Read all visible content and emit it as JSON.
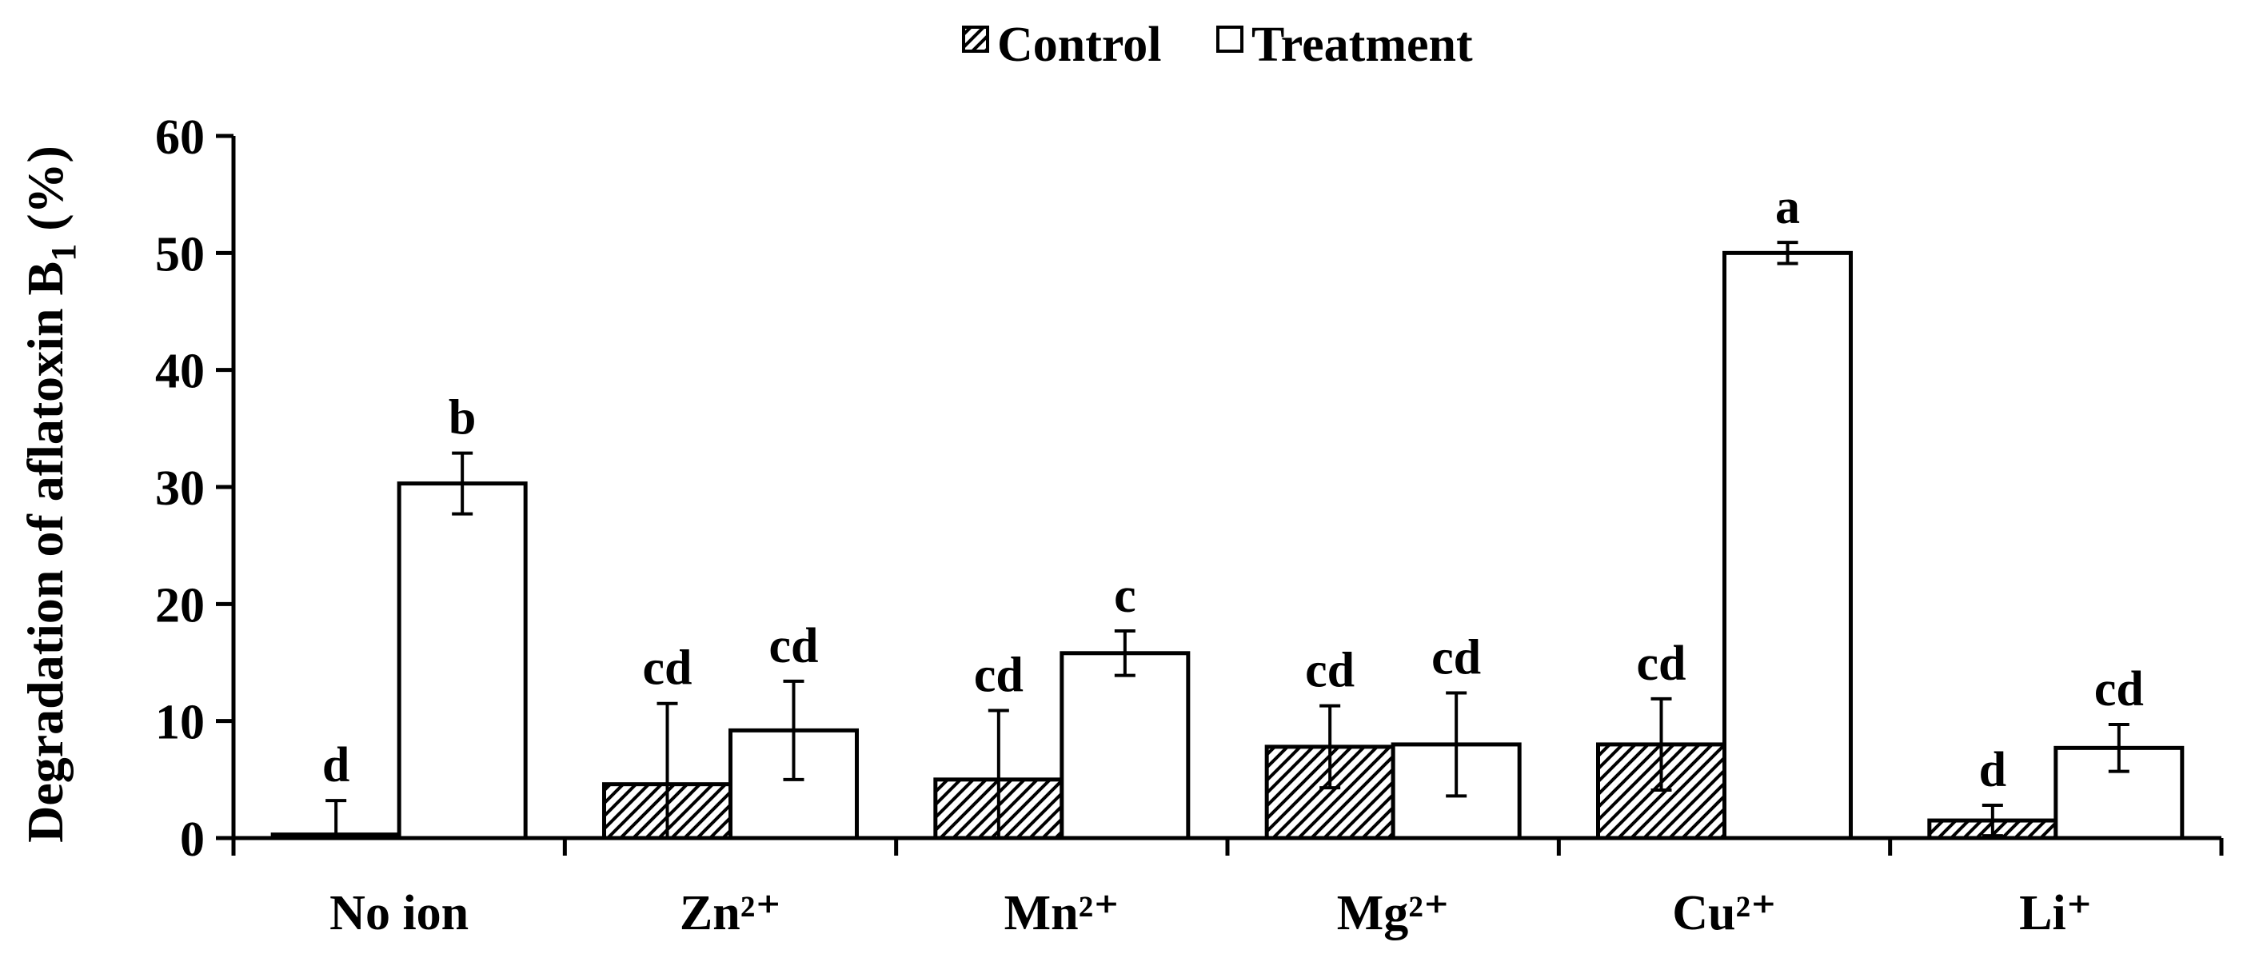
{
  "chart_data": {
    "type": "bar",
    "title": "",
    "xlabel": "",
    "ylabel": "Degradation of aflatoxin B",
    "ylabel_subscript": "1",
    "ylabel_suffix": " (%)",
    "ylim": [
      0,
      60
    ],
    "yticks": [
      0,
      10,
      20,
      30,
      40,
      50,
      60
    ],
    "grid": false,
    "legend_position": "top-center",
    "categories": [
      "No ion",
      "Zn²⁺",
      "Mn²⁺",
      "Mg²⁺",
      "Cu²⁺",
      "Li⁺"
    ],
    "series": [
      {
        "name": "Control",
        "pattern": "hatched",
        "values": [
          0.3,
          4.6,
          5.0,
          7.8,
          8.0,
          1.5
        ],
        "errors": [
          2.9,
          6.9,
          5.9,
          3.5,
          3.9,
          1.3
        ],
        "labels": [
          "d",
          "cd",
          "cd",
          "cd",
          "cd",
          "d"
        ]
      },
      {
        "name": "Treatment",
        "pattern": "open",
        "values": [
          30.3,
          9.2,
          15.8,
          8.0,
          50.0,
          7.7
        ],
        "errors": [
          2.6,
          4.2,
          1.9,
          4.4,
          0.9,
          2.0
        ],
        "labels": [
          "b",
          "cd",
          "c",
          "cd",
          "a",
          "cd"
        ]
      }
    ],
    "colors": {
      "stroke": "#000000",
      "fill": "#ffffff",
      "hatch": "#000000"
    }
  }
}
